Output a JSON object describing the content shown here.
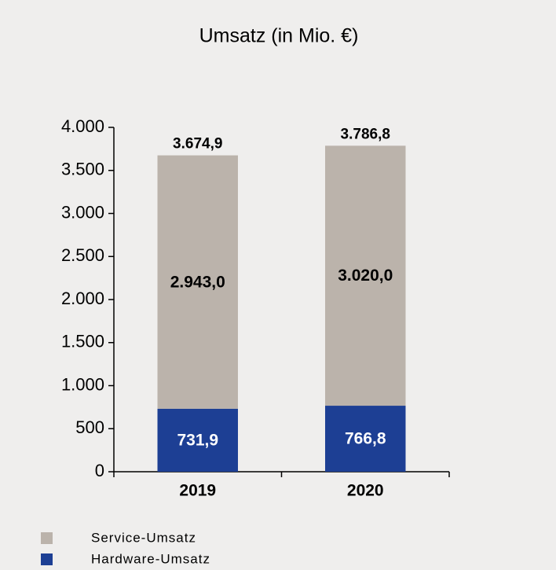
{
  "chart_data": {
    "type": "stacked_bar",
    "title": "Umsatz (in Mio. €)",
    "categories": [
      "2019",
      "2020"
    ],
    "series": [
      {
        "name": "Hardware-Umsatz",
        "color": "#1d3f94",
        "values": [
          731.9,
          766.8
        ],
        "value_labels": [
          "731,9",
          "766,8"
        ]
      },
      {
        "name": "Service-Umsatz",
        "color": "#bbb3ab",
        "values": [
          2943.0,
          3020.0
        ],
        "value_labels": [
          "2.943,0",
          "3.020,0"
        ]
      }
    ],
    "totals": [
      3674.9,
      3786.8
    ],
    "total_labels": [
      "3.674,9",
      "3.786,8"
    ],
    "ylim": [
      0,
      4000
    ],
    "yticks": [
      0,
      500,
      {
        "value": 1000,
        "label": "1.000"
      },
      {
        "value": 1500,
        "label": "1.500"
      },
      {
        "value": 2000,
        "label": "2.000"
      },
      {
        "value": 2500,
        "label": "2.500"
      },
      {
        "value": 3000,
        "label": "3.000"
      },
      {
        "value": 3500,
        "label": "3.500"
      },
      {
        "value": 4000,
        "label": "4.000"
      }
    ],
    "legend": "bottom-left"
  }
}
